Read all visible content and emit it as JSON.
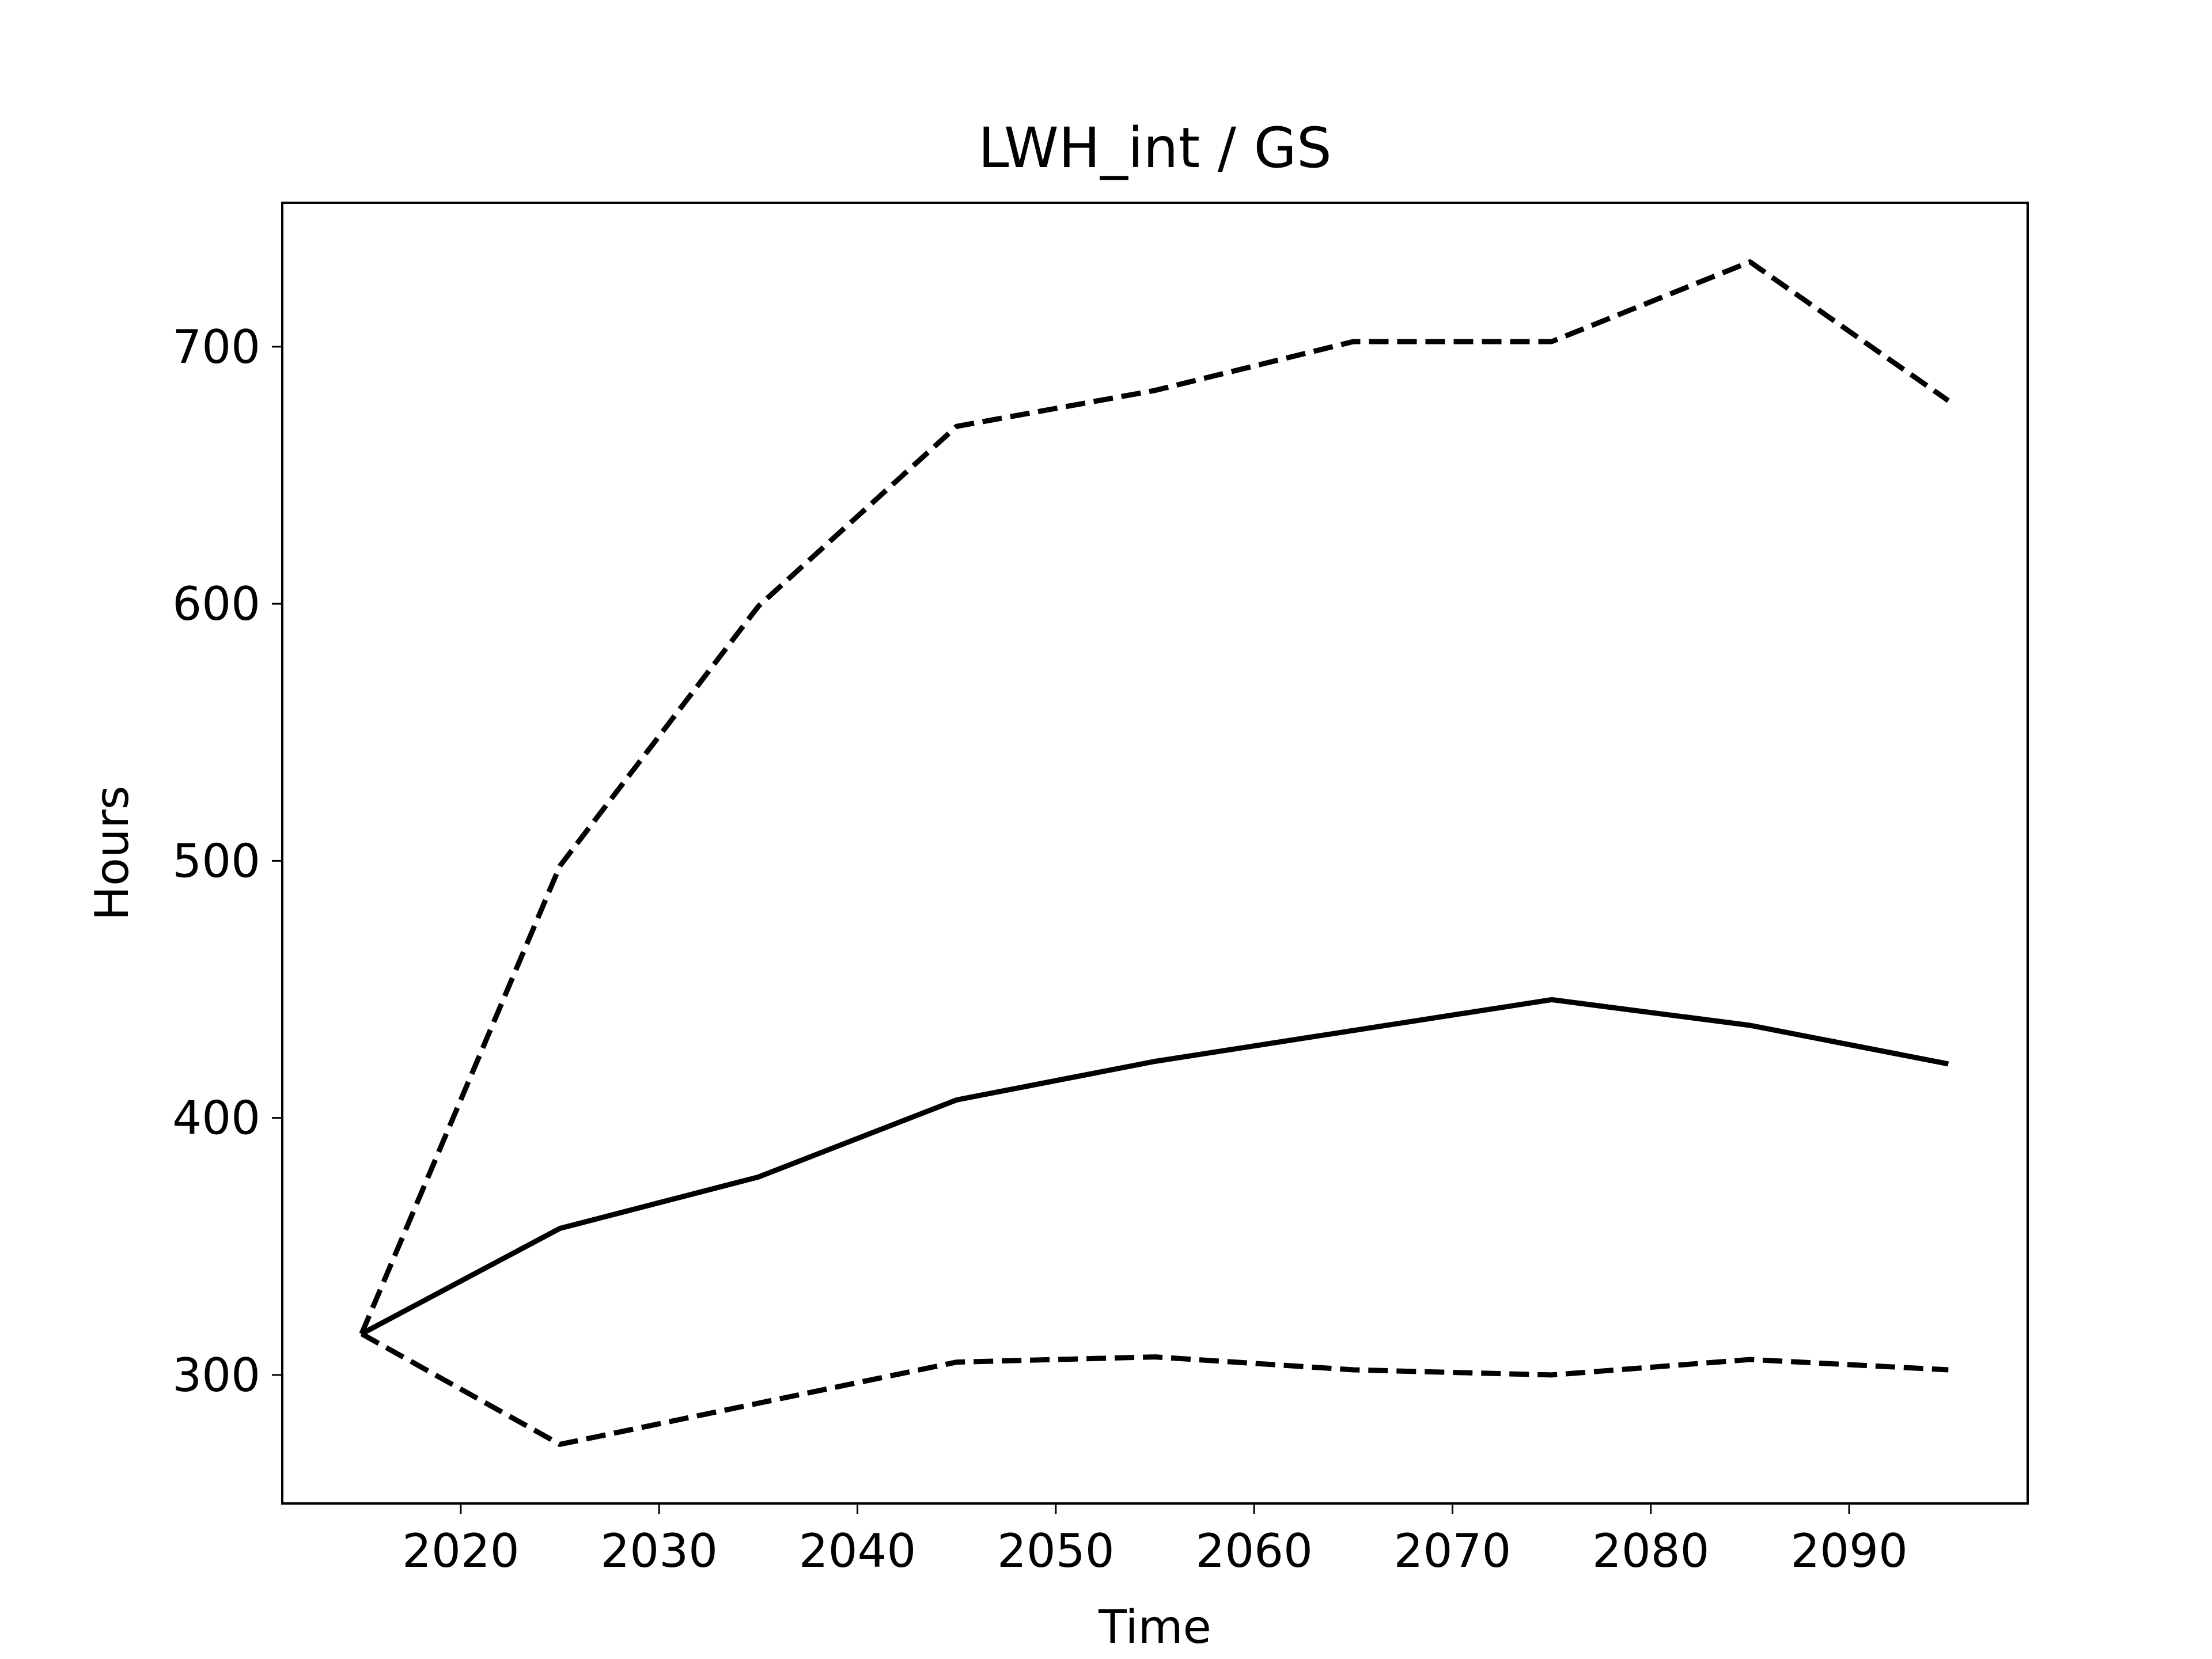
{
  "chart_data": {
    "type": "line",
    "title": "LWH_int / GS",
    "xlabel": "Time",
    "ylabel": "Hours",
    "xlim": [
      2011,
      2099
    ],
    "ylim": [
      250,
      756
    ],
    "xticks": [
      2020,
      2030,
      2040,
      2050,
      2060,
      2070,
      2080,
      2090
    ],
    "yticks": [
      300,
      400,
      500,
      600,
      700
    ],
    "grid": false,
    "legend": "none",
    "x": [
      2015,
      2025,
      2035,
      2045,
      2055,
      2065,
      2075,
      2085,
      2095
    ],
    "series": [
      {
        "style": "solid",
        "color": "#000000",
        "values": [
          316,
          357,
          377,
          407,
          422,
          434,
          446,
          436,
          421
        ]
      },
      {
        "style": "dashed",
        "color": "#000000",
        "values": [
          316,
          498,
          599,
          669,
          683,
          702,
          702,
          733,
          679
        ]
      },
      {
        "style": "dashed",
        "color": "#000000",
        "values": [
          316,
          273,
          289,
          305,
          307,
          302,
          300,
          306,
          302
        ]
      }
    ]
  }
}
